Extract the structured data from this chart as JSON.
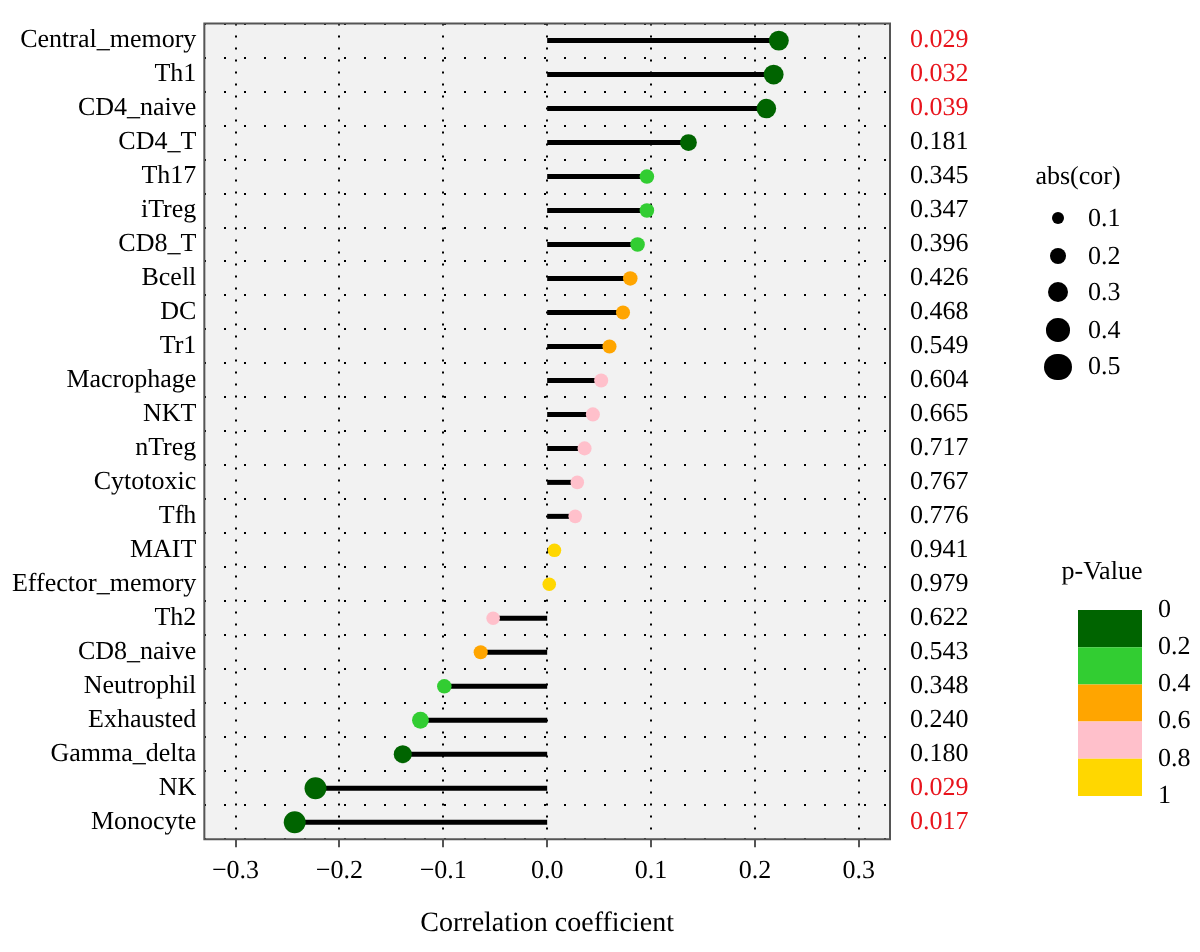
{
  "chart_data": {
    "type": "lollipop",
    "orientation": "horizontal",
    "xlabel": "Correlation coefficient",
    "legend_title": "abs(cor)",
    "clabel": "p-Value",
    "grid": true,
    "marker": "circle",
    "categories": [
      "Central_memory",
      "Th1",
      "CD4_naive",
      "CD4_T",
      "Th17",
      "iTreg",
      "CD8_T",
      "Bcell",
      "DC",
      "Tr1",
      "Macrophage",
      "NKT",
      "nTreg",
      "Cytotoxic",
      "Tfh",
      "MAIT",
      "Effector_memory",
      "Th2",
      "CD8_naive",
      "Neutrophil",
      "Exhausted",
      "Gamma_delta",
      "NK",
      "Monocyte"
    ],
    "values": [
      0.223,
      0.218,
      0.211,
      0.136,
      0.096,
      0.096,
      0.087,
      0.08,
      0.073,
      0.06,
      0.052,
      0.044,
      0.036,
      0.029,
      0.027,
      0.007,
      0.002,
      -0.052,
      -0.064,
      -0.099,
      -0.122,
      -0.139,
      -0.223,
      -0.243
    ],
    "sizes": [
      0.28,
      0.28,
      0.27,
      0.2,
      0.15,
      0.15,
      0.15,
      0.15,
      0.14,
      0.14,
      0.14,
      0.14,
      0.14,
      0.13,
      0.13,
      0.13,
      0.13,
      0.13,
      0.14,
      0.15,
      0.2,
      0.23,
      0.34,
      0.34
    ],
    "size_legend": [
      0.1,
      0.2,
      0.3,
      0.4,
      0.5
    ],
    "y2_categories": [
      "0.029",
      "0.032",
      "0.039",
      "0.181",
      "0.345",
      "0.347",
      "0.396",
      "0.426",
      "0.468",
      "0.549",
      "0.604",
      "0.665",
      "0.717",
      "0.767",
      "0.776",
      "0.941",
      "0.979",
      "0.622",
      "0.543",
      "0.348",
      "0.240",
      "0.180",
      "0.029",
      "0.017"
    ],
    "colors": [
      "#006400",
      "#006400",
      "#006400",
      "#006400",
      "#32cd32",
      "#32cd32",
      "#32cd32",
      "#ffa500",
      "#ffa500",
      "#ffa500",
      "#ffc0cb",
      "#ffc0cb",
      "#ffc0cb",
      "#ffc0cb",
      "#ffc0cb",
      "#ffd700",
      "#ffd700",
      "#ffc0cb",
      "#ffa500",
      "#32cd32",
      "#32cd32",
      "#006400",
      "#006400",
      "#006400"
    ],
    "clim": [
      0,
      1
    ],
    "cticks": [
      0,
      0.2,
      0.4,
      0.6,
      0.8,
      1
    ],
    "xlim": [
      -0.33,
      0.33
    ],
    "xticks": [
      {
        "value": -0.3,
        "label": "−0.3"
      },
      {
        "value": -0.2,
        "label": "−0.2"
      },
      {
        "value": -0.1,
        "label": "−0.1"
      },
      {
        "value": 0,
        "label": "0.0"
      },
      0.1,
      0.2,
      0.3
    ]
  }
}
